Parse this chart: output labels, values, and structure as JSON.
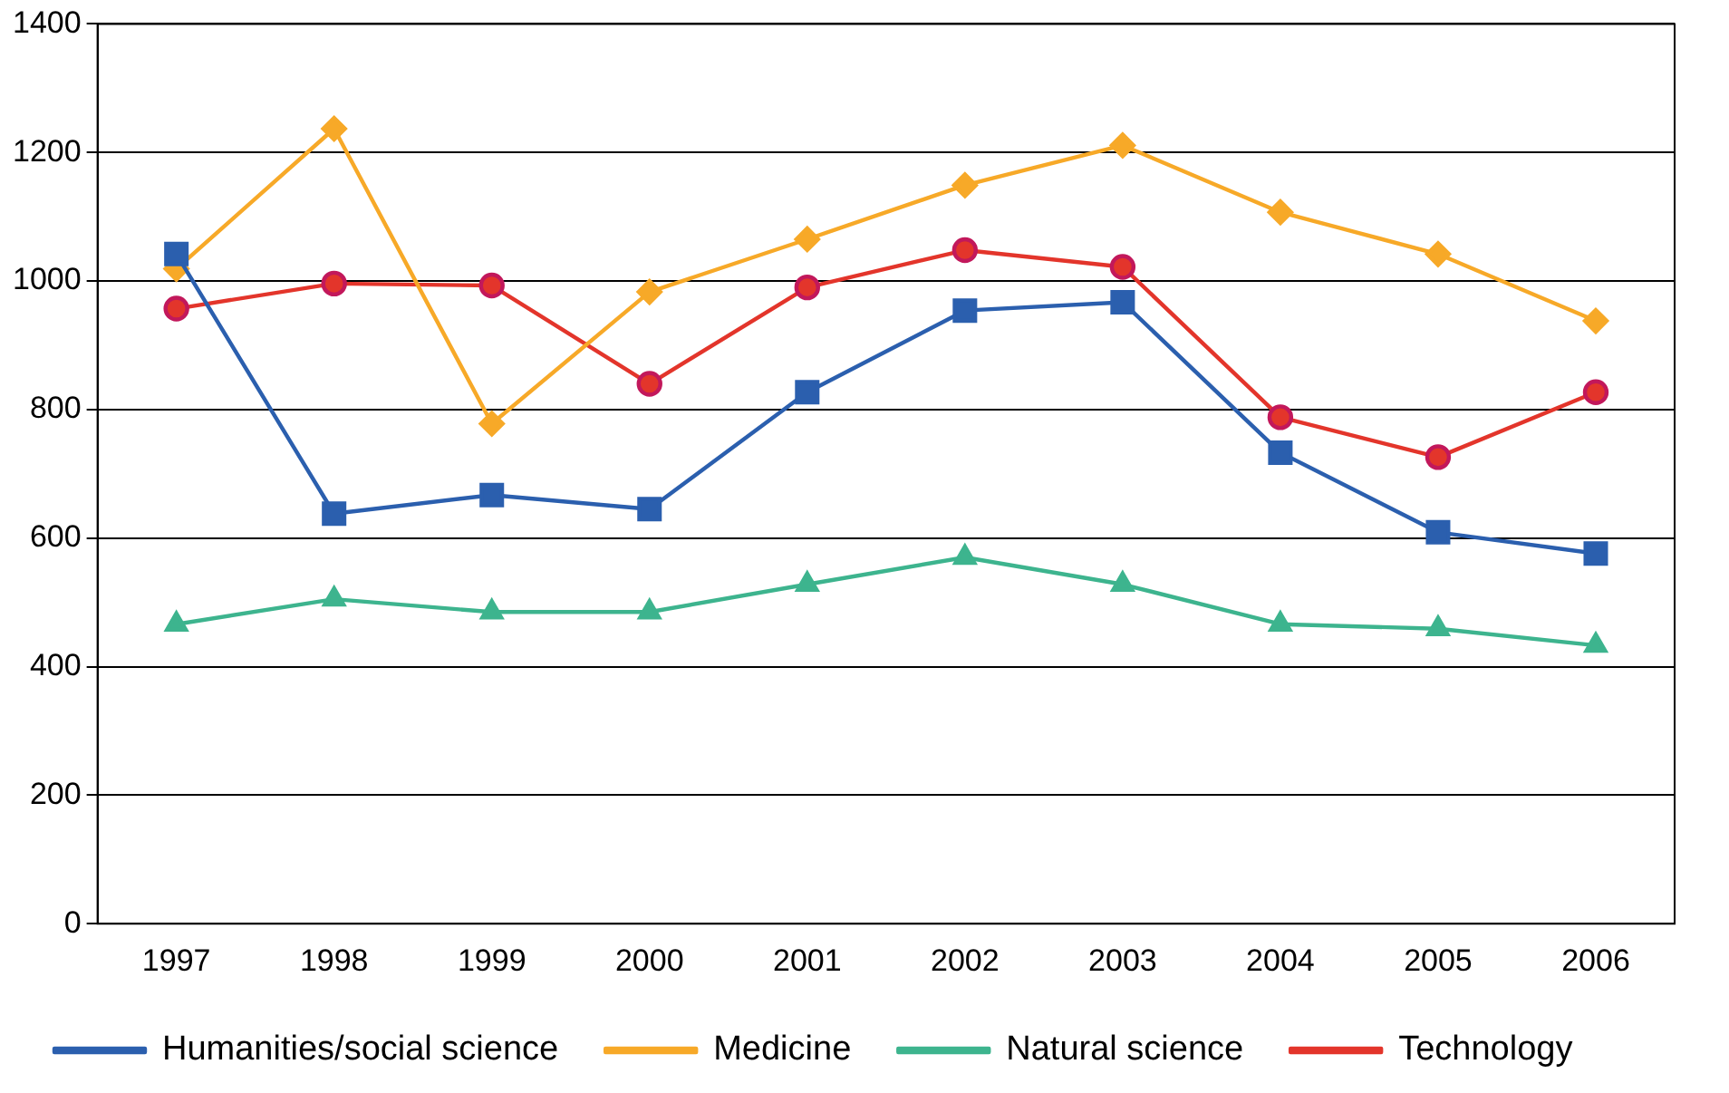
{
  "chart_data": {
    "type": "line",
    "categories": [
      "1997",
      "1998",
      "1999",
      "2000",
      "2001",
      "2002",
      "2003",
      "2004",
      "2005",
      "2006"
    ],
    "ylim": [
      0,
      1400
    ],
    "yticks": [
      0,
      200,
      400,
      600,
      800,
      1000,
      1200,
      1400
    ],
    "grid": "y",
    "legend": "bottom",
    "series": [
      {
        "name": "Humanities/social science",
        "color": "#2b5fae",
        "marker": "square",
        "values": [
          1042,
          638,
          667,
          645,
          827,
          954,
          967,
          733,
          609,
          576
        ]
      },
      {
        "name": "Medicine",
        "color": "#f7a928",
        "marker": "diamond",
        "values": [
          1019,
          1237,
          778,
          983,
          1065,
          1149,
          1211,
          1107,
          1042,
          938
        ]
      },
      {
        "name": "Natural science",
        "color": "#3db48e",
        "marker": "triangle",
        "values": [
          466,
          505,
          485,
          485,
          528,
          570,
          528,
          466,
          459,
          433
        ]
      },
      {
        "name": "Technology",
        "color": "#e3352b",
        "marker": "circle",
        "values": [
          957,
          996,
          993,
          840,
          990,
          1048,
          1022,
          788,
          726,
          827
        ]
      }
    ]
  }
}
